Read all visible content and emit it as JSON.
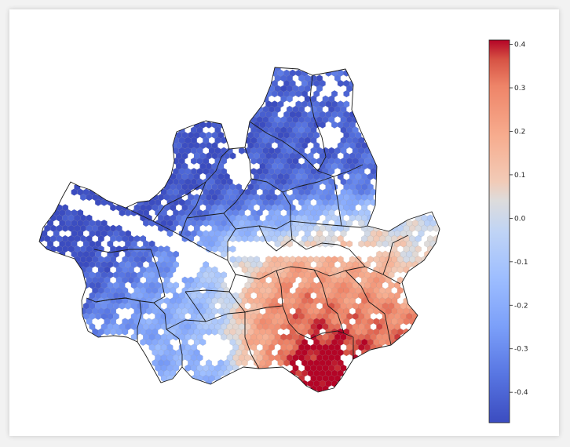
{
  "map": {
    "colorbar": {
      "min": -0.47,
      "max": 0.41,
      "ticks": [
        0.4,
        0.3,
        0.2,
        0.1,
        0.0,
        -0.1,
        -0.2,
        -0.3,
        -0.4
      ],
      "tick_labels": [
        "0.4",
        "0.3",
        "0.2",
        "0.1",
        "0.0",
        "-0.1",
        "-0.2",
        "-0.3",
        "-0.4"
      ],
      "colormap": "coolwarm",
      "low_color": "#3b4cc0",
      "mid_color": "#dddddd",
      "high_color": "#b40426"
    }
  }
}
